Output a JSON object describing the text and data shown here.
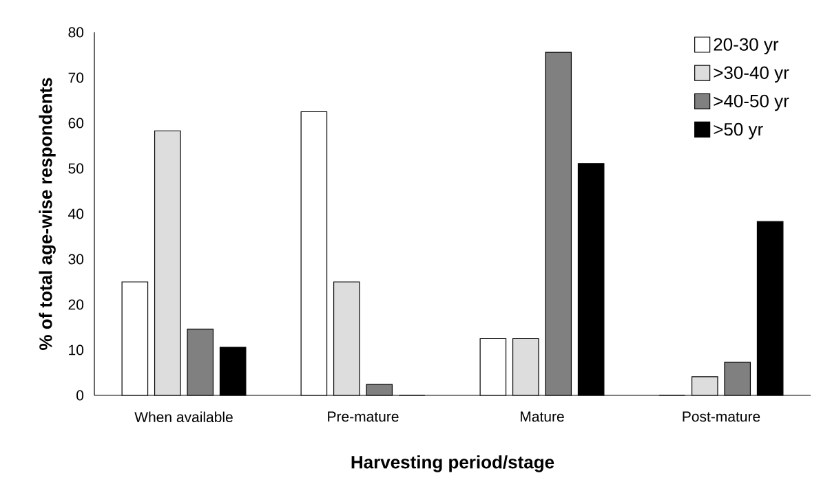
{
  "chart_data": {
    "type": "bar",
    "xlabel": "Harvesting period/stage",
    "ylabel": "% of total age-wise respondents",
    "categories": [
      "When available",
      "Pre-mature",
      "Mature",
      "Post-mature"
    ],
    "series": [
      {
        "name": "20-30 yr",
        "color": "#ffffff",
        "values": [
          25,
          62.5,
          12.5,
          0
        ]
      },
      {
        "name": ">30-40 yr",
        "color": "#dddddd",
        "values": [
          58.3,
          25,
          12.5,
          4.1
        ]
      },
      {
        "name": ">40-50 yr",
        "color": "#808080",
        "values": [
          14.6,
          2.4,
          75.6,
          7.3
        ]
      },
      {
        "name": ">50 yr",
        "color": "#000000",
        "values": [
          10.6,
          0,
          51.1,
          38.3
        ]
      }
    ],
    "ylim": [
      0,
      80
    ],
    "yticks": [
      0,
      10,
      20,
      30,
      40,
      50,
      60,
      70,
      80
    ],
    "grid": false,
    "legend": "top right"
  }
}
